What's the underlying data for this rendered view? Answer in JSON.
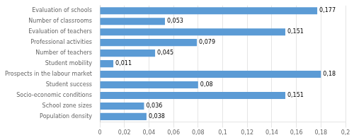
{
  "chart_data": {
    "type": "bar",
    "orientation": "horizontal",
    "categories": [
      "Population density",
      "School zone sizes",
      "Socio-economic conditions",
      "Student success",
      "Prospects in the labour market",
      "Student mobility",
      "Number of teachers",
      "Professional activities",
      "Evaluation of teachers",
      "Number of classrooms",
      "Evaluation of schools"
    ],
    "values": [
      0.038,
      0.036,
      0.151,
      0.08,
      0.18,
      0.011,
      0.045,
      0.079,
      0.151,
      0.053,
      0.177
    ],
    "value_labels": [
      "0,038",
      "0,036",
      "0,151",
      "0,08",
      "0,18",
      "0,011",
      "0,045",
      "0,079",
      "0,151",
      "0,053",
      "0,177"
    ],
    "color": "#5B9BD5",
    "xlim": [
      0,
      0.2
    ],
    "xticks": [
      0,
      {
        "value": 0.02,
        "label": "0,02"
      },
      {
        "value": 0.04,
        "label": "0,04"
      },
      {
        "value": 0.06,
        "label": "0,06"
      },
      {
        "value": 0.08,
        "label": "0,08"
      },
      {
        "value": 0.1,
        "label": "0,1"
      },
      {
        "value": 0.12,
        "label": "0,12"
      },
      {
        "value": 0.14,
        "label": "0,14"
      },
      {
        "value": 0.16,
        "label": "0,16"
      },
      {
        "value": 0.18,
        "label": "0,18"
      },
      {
        "value": 0.2,
        "label": "0,2"
      }
    ],
    "grid": true,
    "data_labels": true
  }
}
